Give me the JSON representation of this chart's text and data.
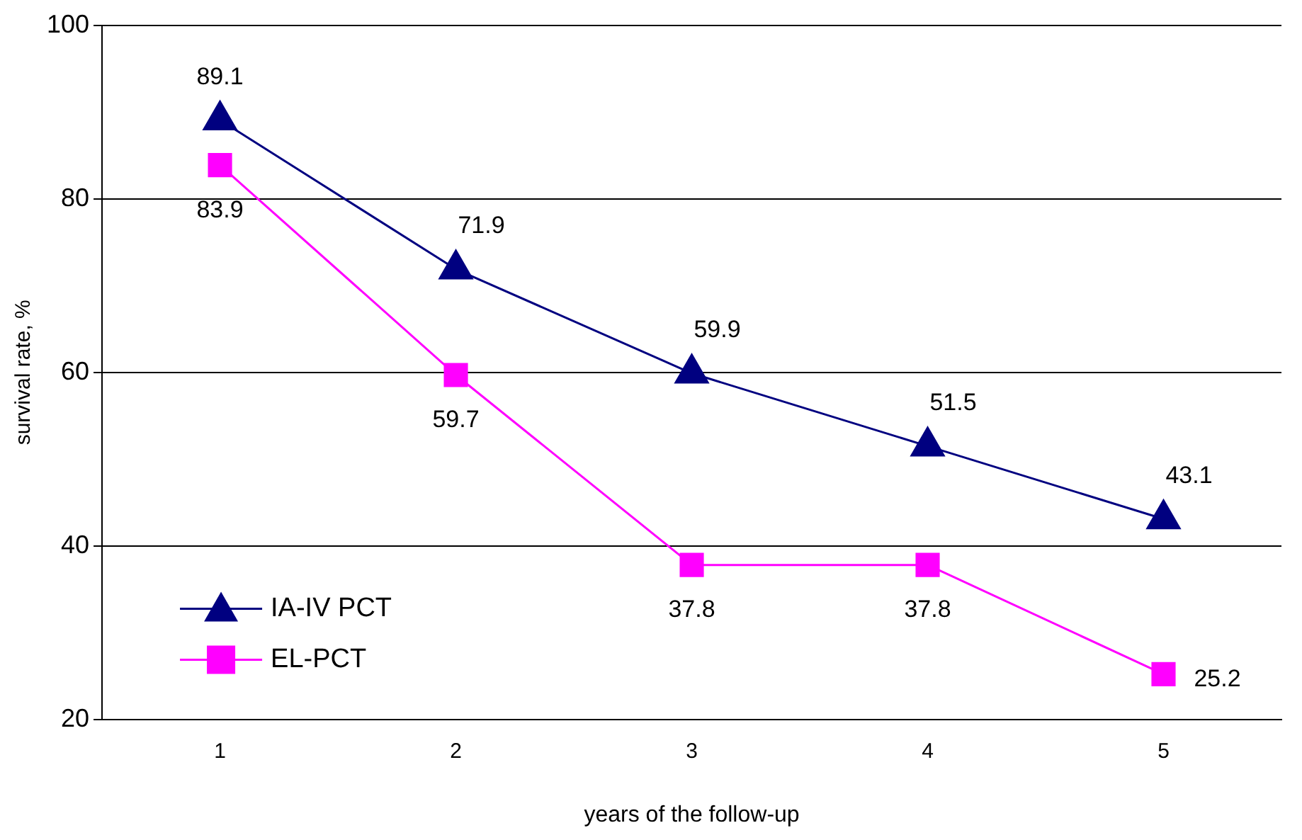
{
  "chart_data": {
    "type": "line",
    "xlabel": "years of the follow-up",
    "ylabel": "survival rate, %",
    "categories": [
      "1",
      "2",
      "3",
      "4",
      "5"
    ],
    "series": [
      {
        "name": "IA-IV PCT",
        "color": "#000080",
        "marker": "triangle",
        "values": [
          89.1,
          71.9,
          59.9,
          51.5,
          43.1
        ]
      },
      {
        "name": "EL-PCT",
        "color": "#ff00ff",
        "marker": "square",
        "values": [
          83.9,
          59.7,
          37.8,
          37.8,
          25.2
        ]
      }
    ],
    "ylim": [
      20,
      100
    ],
    "yticks": [
      20,
      40,
      60,
      80,
      100
    ],
    "grid": "y",
    "legend": "bottom left",
    "data_labels": true
  }
}
